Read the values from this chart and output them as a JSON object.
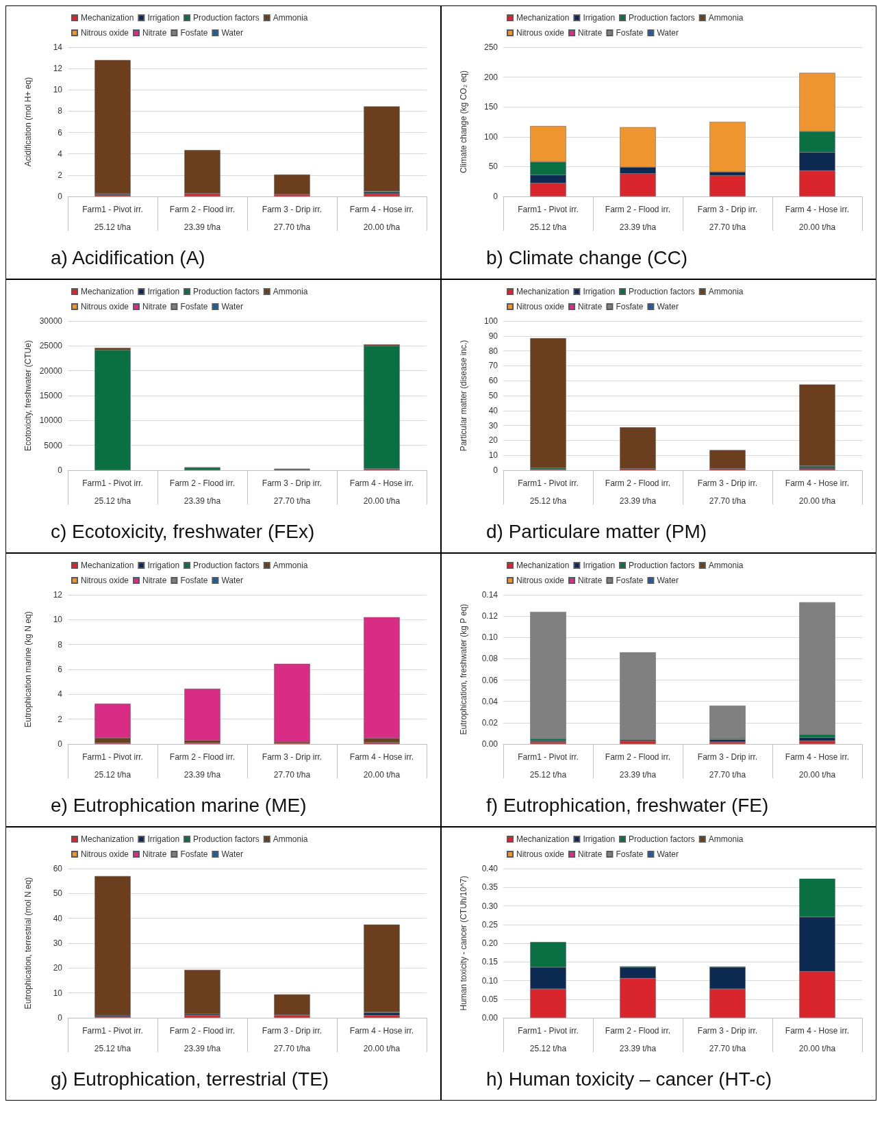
{
  "chart_data": [
    {
      "type": "bar",
      "stacked": true,
      "title": "a) Acidification (A)",
      "ylabel": "Acidification (mol H+ eq)",
      "categories": [
        "Farm1 - Pivot irr.\n25.12 t/ha",
        "Farm 2 - Flood irr.\n23.39 t/ha",
        "Farm 3 - Drip irr.\n27.70 t/ha",
        "Farm 4 - Hose irr.\n20.00 t/ha"
      ],
      "ylim": [
        0,
        14
      ],
      "yticks": [
        0,
        2,
        4,
        6,
        8,
        10,
        12,
        14
      ],
      "grid": "y",
      "legend": "top",
      "series": [
        {
          "name": "Mechanization",
          "color": "#d9262c",
          "values": [
            0.15,
            0.25,
            0.2,
            0.25
          ]
        },
        {
          "name": "Irrigation",
          "color": "#0d2a52",
          "values": [
            0.1,
            0.05,
            null,
            0.15
          ]
        },
        {
          "name": "Production factors",
          "color": "#0a7043",
          "values": [
            null,
            null,
            null,
            0.1
          ]
        },
        {
          "name": "Ammonia",
          "color": "#6b3f1e",
          "values": [
            12.55,
            4.05,
            1.85,
            7.95
          ]
        },
        {
          "name": "Nitrous oxide",
          "color": "#ee9530",
          "values": [
            null,
            null,
            null,
            null
          ]
        },
        {
          "name": "Nitrate",
          "color": "#d92c85",
          "values": [
            null,
            null,
            null,
            null
          ]
        },
        {
          "name": "Fosfate",
          "color": "#808080",
          "values": [
            null,
            null,
            null,
            null
          ]
        },
        {
          "name": "Water",
          "color": "#1f5f9e",
          "values": [
            null,
            null,
            null,
            null
          ]
        }
      ]
    },
    {
      "type": "bar",
      "stacked": true,
      "title": "b) Climate change (CC)",
      "ylabel": "Climate change (kg CO₂ eq)",
      "categories": [
        "Farm1 - Pivot irr.\n25.12 t/ha",
        "Farm 2 - Flood irr.\n23.39 t/ha",
        "Farm 3 - Drip irr.\n27.70 t/ha",
        "Farm 4 - Hose irr.\n20.00 t/ha"
      ],
      "ylim": [
        0,
        250
      ],
      "yticks": [
        0,
        50,
        100,
        150,
        200,
        250
      ],
      "grid": "y",
      "legend": "top",
      "series": [
        {
          "name": "Mechanization",
          "color": "#d9262c",
          "values": [
            22,
            38,
            35,
            43
          ]
        },
        {
          "name": "Irrigation",
          "color": "#0d2a52",
          "values": [
            14,
            11,
            6,
            31
          ]
        },
        {
          "name": "Production factors",
          "color": "#0a7043",
          "values": [
            22,
            null,
            null,
            35
          ]
        },
        {
          "name": "Ammonia",
          "color": "#6b3f1e",
          "values": [
            null,
            null,
            null,
            null
          ]
        },
        {
          "name": "Nitrous oxide",
          "color": "#ee9530",
          "values": [
            60,
            67,
            84,
            98
          ]
        },
        {
          "name": "Nitrate",
          "color": "#d92c85",
          "values": [
            null,
            null,
            null,
            null
          ]
        },
        {
          "name": "Fosfate",
          "color": "#808080",
          "values": [
            null,
            null,
            null,
            null
          ]
        },
        {
          "name": "Water",
          "color": "#1f5f9e",
          "values": [
            null,
            null,
            null,
            null
          ]
        }
      ]
    },
    {
      "type": "bar",
      "stacked": true,
      "title": "c) Ecotoxicity, freshwater (FEx)",
      "ylabel": "Ecotoxicity, freshwater (CTUe)",
      "categories": [
        "Farm1 - Pivot irr.\n25.12 t/ha",
        "Farm 2 - Flood irr.\n23.39 t/ha",
        "Farm 3 - Drip irr.\n27.70 t/ha",
        "Farm 4 - Hose irr.\n20.00 t/ha"
      ],
      "ylim": [
        0,
        30000
      ],
      "yticks": [
        0,
        5000,
        10000,
        15000,
        20000,
        25000,
        30000
      ],
      "grid": "y",
      "legend": "top",
      "series": [
        {
          "name": "Mechanization",
          "color": "#d9262c",
          "values": [
            null,
            null,
            100,
            200
          ]
        },
        {
          "name": "Irrigation",
          "color": "#0d2a52",
          "values": [
            null,
            null,
            null,
            100
          ]
        },
        {
          "name": "Production factors",
          "color": "#0a7043",
          "values": [
            24100,
            500,
            100,
            24700
          ]
        },
        {
          "name": "Ammonia",
          "color": "#6b3f1e",
          "values": [
            500,
            100,
            100,
            300
          ]
        },
        {
          "name": "Nitrous oxide",
          "color": "#ee9530",
          "values": [
            null,
            null,
            null,
            null
          ]
        },
        {
          "name": "Nitrate",
          "color": "#d92c85",
          "values": [
            null,
            null,
            null,
            null
          ]
        },
        {
          "name": "Fosfate",
          "color": "#808080",
          "values": [
            null,
            null,
            null,
            null
          ]
        },
        {
          "name": "Water",
          "color": "#1f5f9e",
          "values": [
            null,
            null,
            null,
            null
          ]
        }
      ]
    },
    {
      "type": "bar",
      "stacked": true,
      "title": "d) Particulare matter (PM)",
      "ylabel": "Particular matter (disease inc.)",
      "categories": [
        "Farm1 - Pivot irr.\n25.12 t/ha",
        "Farm 2 - Flood irr.\n23.39 t/ha",
        "Farm 3 - Drip irr.\n27.70 t/ha",
        "Farm 4 - Hose irr.\n20.00 t/ha"
      ],
      "ylim": [
        0,
        100
      ],
      "yticks": [
        0,
        10,
        20,
        30,
        40,
        50,
        60,
        70,
        80,
        90,
        100
      ],
      "grid": "y",
      "legend": "top",
      "series": [
        {
          "name": "Mechanization",
          "color": "#d9262c",
          "values": [
            0.5,
            1,
            1,
            1
          ]
        },
        {
          "name": "Irrigation",
          "color": "#0d2a52",
          "values": [
            null,
            null,
            null,
            1
          ]
        },
        {
          "name": "Production factors",
          "color": "#0a7043",
          "values": [
            1,
            null,
            null,
            1
          ]
        },
        {
          "name": "Ammonia",
          "color": "#6b3f1e",
          "values": [
            87,
            27.8,
            12.5,
            54.5
          ]
        },
        {
          "name": "Nitrous oxide",
          "color": "#ee9530",
          "values": [
            null,
            null,
            null,
            null
          ]
        },
        {
          "name": "Nitrate",
          "color": "#d92c85",
          "values": [
            null,
            null,
            null,
            null
          ]
        },
        {
          "name": "Fosfate",
          "color": "#808080",
          "values": [
            null,
            null,
            null,
            null
          ]
        },
        {
          "name": "Water",
          "color": "#1f5f9e",
          "values": [
            null,
            null,
            null,
            null
          ]
        }
      ]
    },
    {
      "type": "bar",
      "stacked": true,
      "title": "e) Eutrophication marine (ME)",
      "ylabel": "Eutrophication marine (kg N eq)",
      "categories": [
        "Farm1 - Pivot irr.\n25.12 t/ha",
        "Farm 2 - Flood irr.\n23.39 t/ha",
        "Farm 3 - Drip irr.\n27.70 t/ha",
        "Farm 4 - Hose irr.\n20.00 t/ha"
      ],
      "ylim": [
        0,
        12
      ],
      "yticks": [
        0,
        2,
        4,
        6,
        8,
        10,
        12
      ],
      "grid": "y",
      "legend": "top",
      "series": [
        {
          "name": "Mechanization",
          "color": "#d9262c",
          "values": [
            0.1,
            0.1,
            0.1,
            0.15
          ]
        },
        {
          "name": "Irrigation",
          "color": "#0d2a52",
          "values": [
            null,
            null,
            null,
            null
          ]
        },
        {
          "name": "Production factors",
          "color": "#0a7043",
          "values": [
            null,
            null,
            null,
            null
          ]
        },
        {
          "name": "Ammonia",
          "color": "#6b3f1e",
          "values": [
            0.4,
            0.2,
            0.1,
            0.3
          ]
        },
        {
          "name": "Nitrous oxide",
          "color": "#ee9530",
          "values": [
            null,
            null,
            null,
            null
          ]
        },
        {
          "name": "Nitrate",
          "color": "#d92c85",
          "values": [
            2.75,
            4.15,
            6.25,
            9.75
          ]
        },
        {
          "name": "Fosfate",
          "color": "#808080",
          "values": [
            null,
            null,
            null,
            null
          ]
        },
        {
          "name": "Water",
          "color": "#1f5f9e",
          "values": [
            null,
            null,
            null,
            null
          ]
        }
      ]
    },
    {
      "type": "bar",
      "stacked": true,
      "title": "f) Eutrophication, freshwater (FE)",
      "ylabel": "Eutrophication, freshwater (kg P eq)",
      "categories": [
        "Farm1 - Pivot irr.\n25.12 t/ha",
        "Farm 2 - Flood irr.\n23.39 t/ha",
        "Farm 3 - Drip irr.\n27.70 t/ha",
        "Farm 4 - Hose irr.\n20.00 t/ha"
      ],
      "ylim": [
        0,
        0.14
      ],
      "yticks": [
        {
          "value": 0,
          "label": "0.00"
        },
        0.02,
        0.04,
        0.06,
        0.08,
        {
          "value": 0.1,
          "label": "0.10"
        },
        0.12,
        0.14
      ],
      "grid": "y",
      "legend": "top",
      "series": [
        {
          "name": "Mechanization",
          "color": "#d9262c",
          "values": [
            0.002,
            0.003,
            0.002,
            0.003
          ]
        },
        {
          "name": "Irrigation",
          "color": "#0d2a52",
          "values": [
            0.001,
            0.001,
            0.002,
            0.003
          ]
        },
        {
          "name": "Production factors",
          "color": "#0a7043",
          "values": [
            0.002,
            null,
            0.001,
            0.003
          ]
        },
        {
          "name": "Ammonia",
          "color": "#6b3f1e",
          "values": [
            null,
            null,
            null,
            null
          ]
        },
        {
          "name": "Nitrous oxide",
          "color": "#ee9530",
          "values": [
            null,
            null,
            null,
            null
          ]
        },
        {
          "name": "Nitrate",
          "color": "#d92c85",
          "values": [
            null,
            null,
            null,
            null
          ]
        },
        {
          "name": "Fosfate",
          "color": "#808080",
          "values": [
            0.119,
            0.082,
            0.031,
            0.124
          ]
        },
        {
          "name": "Water",
          "color": "#1f5f9e",
          "values": [
            null,
            null,
            null,
            null
          ]
        }
      ]
    },
    {
      "type": "bar",
      "stacked": true,
      "title": "g) Eutrophication, terrestrial (TE)",
      "ylabel": "Eutrophication, terrestrial (mol N eq)",
      "categories": [
        "Farm1 - Pivot irr.\n25.12 t/ha",
        "Farm 2 - Flood irr.\n23.39 t/ha",
        "Farm 3 - Drip irr.\n27.70 t/ha",
        "Farm 4 - Hose irr.\n20.00 t/ha"
      ],
      "ylim": [
        0,
        60
      ],
      "yticks": [
        0,
        10,
        20,
        30,
        40,
        50,
        60
      ],
      "grid": "y",
      "legend": "top",
      "series": [
        {
          "name": "Mechanization",
          "color": "#d9262c",
          "values": [
            0.5,
            1,
            1,
            1
          ]
        },
        {
          "name": "Irrigation",
          "color": "#0d2a52",
          "values": [
            0.5,
            0.5,
            0.3,
            1
          ]
        },
        {
          "name": "Production factors",
          "color": "#0a7043",
          "values": [
            null,
            null,
            null,
            0.3
          ]
        },
        {
          "name": "Ammonia",
          "color": "#6b3f1e",
          "values": [
            56,
            17.8,
            8.1,
            35.2
          ]
        },
        {
          "name": "Nitrous oxide",
          "color": "#ee9530",
          "values": [
            null,
            null,
            null,
            null
          ]
        },
        {
          "name": "Nitrate",
          "color": "#d92c85",
          "values": [
            null,
            null,
            null,
            null
          ]
        },
        {
          "name": "Fosfate",
          "color": "#808080",
          "values": [
            null,
            null,
            null,
            null
          ]
        },
        {
          "name": "Water",
          "color": "#1f5f9e",
          "values": [
            null,
            null,
            null,
            null
          ]
        }
      ]
    },
    {
      "type": "bar",
      "stacked": true,
      "title": "h) Human toxicity – cancer (HT-c)",
      "ylabel": "Human toxicity - cancer (CTUh/10^7)",
      "categories": [
        "Farm1 - Pivot irr.\n25.12 t/ha",
        "Farm 2 - Flood irr.\n23.39 t/ha",
        "Farm 3 - Drip irr.\n27.70 t/ha",
        "Farm 4 - Hose irr.\n20.00 t/ha"
      ],
      "ylim": [
        0,
        0.4
      ],
      "yticks": [
        {
          "value": 0,
          "label": "0.00"
        },
        0.05,
        {
          "value": 0.1,
          "label": "0.10"
        },
        0.15,
        {
          "value": 0.2,
          "label": "0.20"
        },
        0.25,
        {
          "value": 0.3,
          "label": "0.30"
        },
        0.35,
        {
          "value": 0.4,
          "label": "0.40"
        }
      ],
      "grid": "y",
      "legend": "top",
      "series": [
        {
          "name": "Mechanization",
          "color": "#d9262c",
          "values": [
            0.077,
            0.106,
            0.077,
            0.124
          ]
        },
        {
          "name": "Irrigation",
          "color": "#0d2a52",
          "values": [
            0.059,
            0.03,
            0.059,
            0.146
          ]
        },
        {
          "name": "Production factors",
          "color": "#0a7043",
          "values": [
            0.067,
            0.002,
            0.001,
            0.103
          ]
        },
        {
          "name": "Ammonia",
          "color": "#6b3f1e",
          "values": [
            null,
            null,
            null,
            null
          ]
        },
        {
          "name": "Nitrous oxide",
          "color": "#ee9530",
          "values": [
            null,
            null,
            null,
            null
          ]
        },
        {
          "name": "Nitrate",
          "color": "#d92c85",
          "values": [
            null,
            null,
            null,
            null
          ]
        },
        {
          "name": "Fosfate",
          "color": "#808080",
          "values": [
            null,
            null,
            null,
            null
          ]
        },
        {
          "name": "Water",
          "color": "#1f5f9e",
          "values": [
            null,
            null,
            null,
            null
          ]
        }
      ]
    }
  ]
}
